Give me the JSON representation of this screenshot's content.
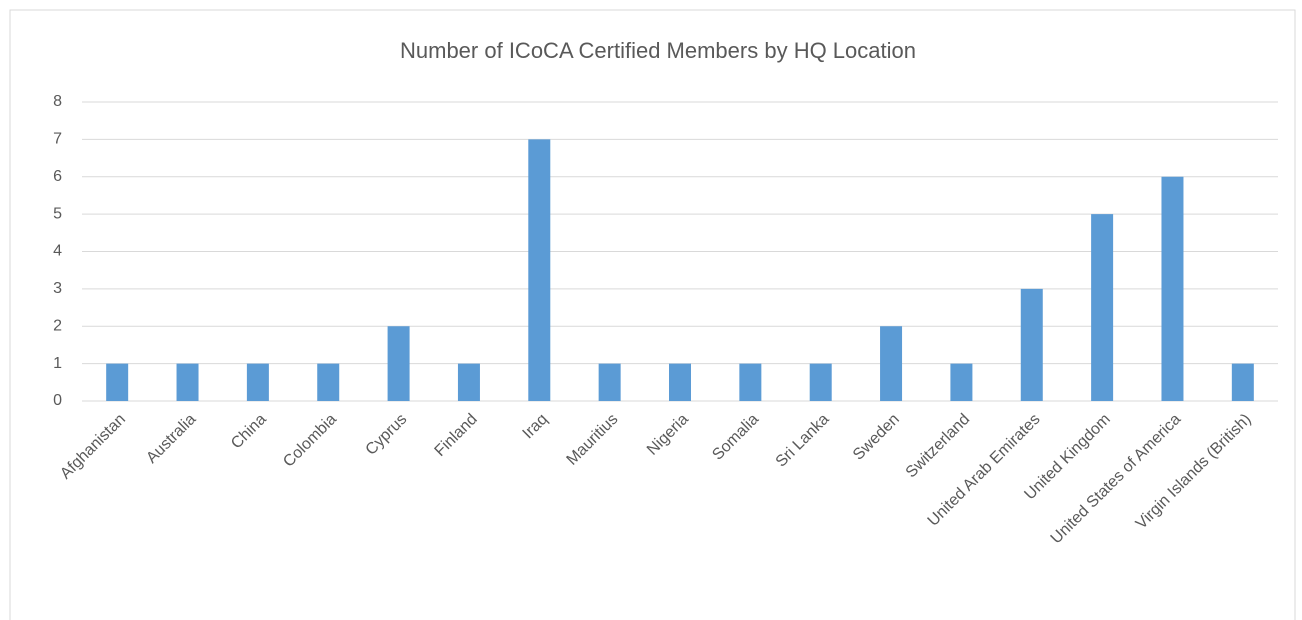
{
  "chart_data": {
    "type": "bar",
    "title": "Number of ICoCA Certified Members by HQ Location",
    "categories": [
      "Afghanistan",
      "Australia",
      "China",
      "Colombia",
      "Cyprus",
      "Finland",
      "Iraq",
      "Mauritius",
      "Nigeria",
      "Somalia",
      "Sri Lanka",
      "Sweden",
      "Switzerland",
      "United Arab Emirates",
      "United Kingdom",
      "United States of America",
      "Virgin Islands (British)"
    ],
    "values": [
      1,
      1,
      1,
      1,
      2,
      1,
      7,
      1,
      1,
      1,
      1,
      2,
      1,
      3,
      5,
      6,
      1
    ],
    "color": "#5b9bd5",
    "ylim": [
      0,
      8
    ],
    "yticks": [
      0,
      1,
      2,
      3,
      4,
      5,
      6,
      7,
      8
    ],
    "grid": true
  }
}
